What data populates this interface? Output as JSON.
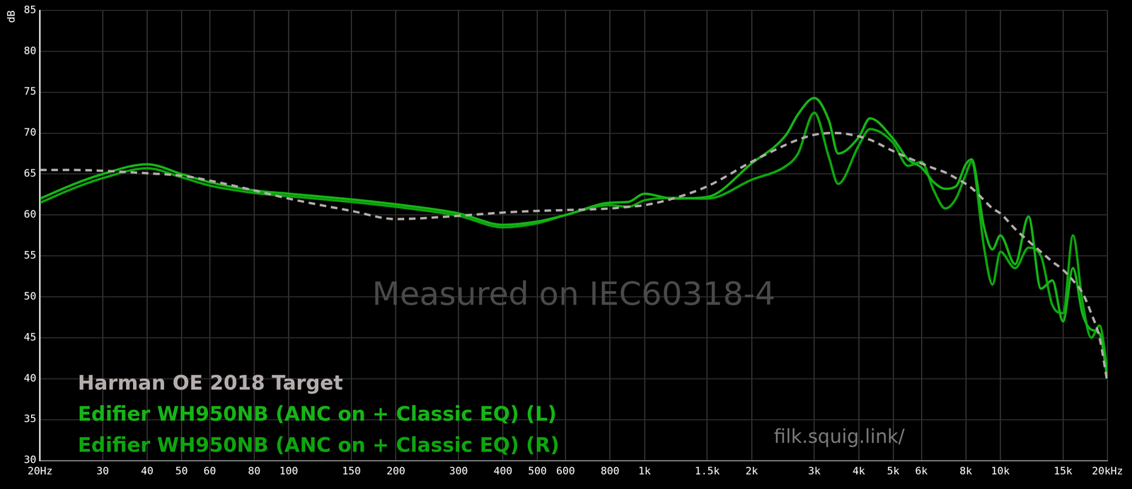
{
  "chart_data": {
    "type": "line",
    "y_label": "dB",
    "log": "x",
    "grid": true,
    "legend": "lower left",
    "xlim": [
      20,
      20000
    ],
    "ylim": [
      30,
      85
    ],
    "xticks": [
      {
        "value": 20,
        "label": "20Hz"
      },
      30,
      40,
      50,
      60,
      80,
      100,
      150,
      200,
      300,
      400,
      500,
      600,
      800,
      {
        "value": 1000,
        "label": "1k"
      },
      {
        "value": 1500,
        "label": "1.5k"
      },
      {
        "value": 2000,
        "label": "2k"
      },
      {
        "value": 3000,
        "label": "3k"
      },
      {
        "value": 4000,
        "label": "4k"
      },
      {
        "value": 5000,
        "label": "5k"
      },
      {
        "value": 6000,
        "label": "6k"
      },
      {
        "value": 8000,
        "label": "8k"
      },
      {
        "value": 10000,
        "label": "10k"
      },
      {
        "value": 15000,
        "label": "15k"
      },
      {
        "value": 20000,
        "label": "20kHz"
      }
    ],
    "yticks": [
      30,
      35,
      40,
      45,
      50,
      55,
      60,
      65,
      70,
      75,
      80,
      85
    ],
    "annotations": [
      {
        "text": "Measured on IEC60318-4"
      },
      {
        "text": "filk.squig.link/"
      }
    ],
    "x": [
      20,
      25,
      30,
      40,
      50,
      60,
      80,
      100,
      150,
      200,
      300,
      400,
      500,
      600,
      800,
      900,
      1000,
      1200,
      1500,
      2000,
      2500,
      2700,
      3000,
      3300,
      3500,
      4000,
      4300,
      5000,
      5500,
      6000,
      6500,
      7000,
      7500,
      8000,
      8300,
      9000,
      9500,
      10000,
      11000,
      12000,
      13000,
      14000,
      15000,
      16000,
      17000,
      18000,
      19000,
      20000
    ],
    "series": [
      {
        "name": "Harman OE 2018 Target",
        "color": "#b3adab",
        "line_style": "dashed",
        "values": [
          65.5,
          65.5,
          65.4,
          65.1,
          64.8,
          64.2,
          63,
          62,
          60.5,
          59.5,
          59.9,
          60.3,
          60.5,
          60.6,
          60.8,
          61,
          61.2,
          62,
          63.5,
          66.5,
          68.6,
          69.2,
          69.8,
          70,
          70,
          69.6,
          69.2,
          67.8,
          67,
          66.3,
          65.7,
          65.2,
          64.5,
          63.8,
          63.3,
          61.8,
          60.8,
          60.2,
          58.3,
          56.8,
          55.5,
          54.3,
          53.3,
          52,
          50.5,
          48,
          45,
          39.5
        ]
      },
      {
        "name": "Edifier WH950NB (ANC on + Classic EQ) (L)",
        "color": "#17b317",
        "line_style": "solid",
        "values": [
          62,
          63.8,
          65,
          66.2,
          65,
          64,
          63,
          62.6,
          61.9,
          61.3,
          60.2,
          58.8,
          59.2,
          60,
          61.5,
          61.6,
          62.6,
          62,
          62.2,
          66.3,
          69.8,
          72.3,
          74.3,
          71.5,
          67.5,
          69.5,
          71.8,
          69.3,
          66.8,
          65.8,
          64,
          63.2,
          63.5,
          66.2,
          66.8,
          58.5,
          55.8,
          57.5,
          54,
          59.8,
          51,
          52,
          47,
          53.5,
          48,
          46,
          45.5,
          40
        ]
      },
      {
        "name": "Edifier WH950NB (ANC on + Classic EQ) (R)",
        "color": "#0ea50e",
        "line_style": "solid",
        "values": [
          61.5,
          63.3,
          64.5,
          65.7,
          64.6,
          63.6,
          62.7,
          62.3,
          61.6,
          61,
          59.9,
          58.5,
          59,
          60,
          61.2,
          61,
          61.8,
          62.1,
          62,
          64.3,
          66,
          67.5,
          72.5,
          67,
          63.8,
          68.5,
          70.5,
          68.8,
          66,
          66.5,
          63,
          60.8,
          62,
          65,
          66.5,
          56,
          51.5,
          55.5,
          53.5,
          56,
          55,
          49,
          48,
          57.5,
          49.5,
          45,
          46.5,
          41
        ]
      }
    ]
  }
}
